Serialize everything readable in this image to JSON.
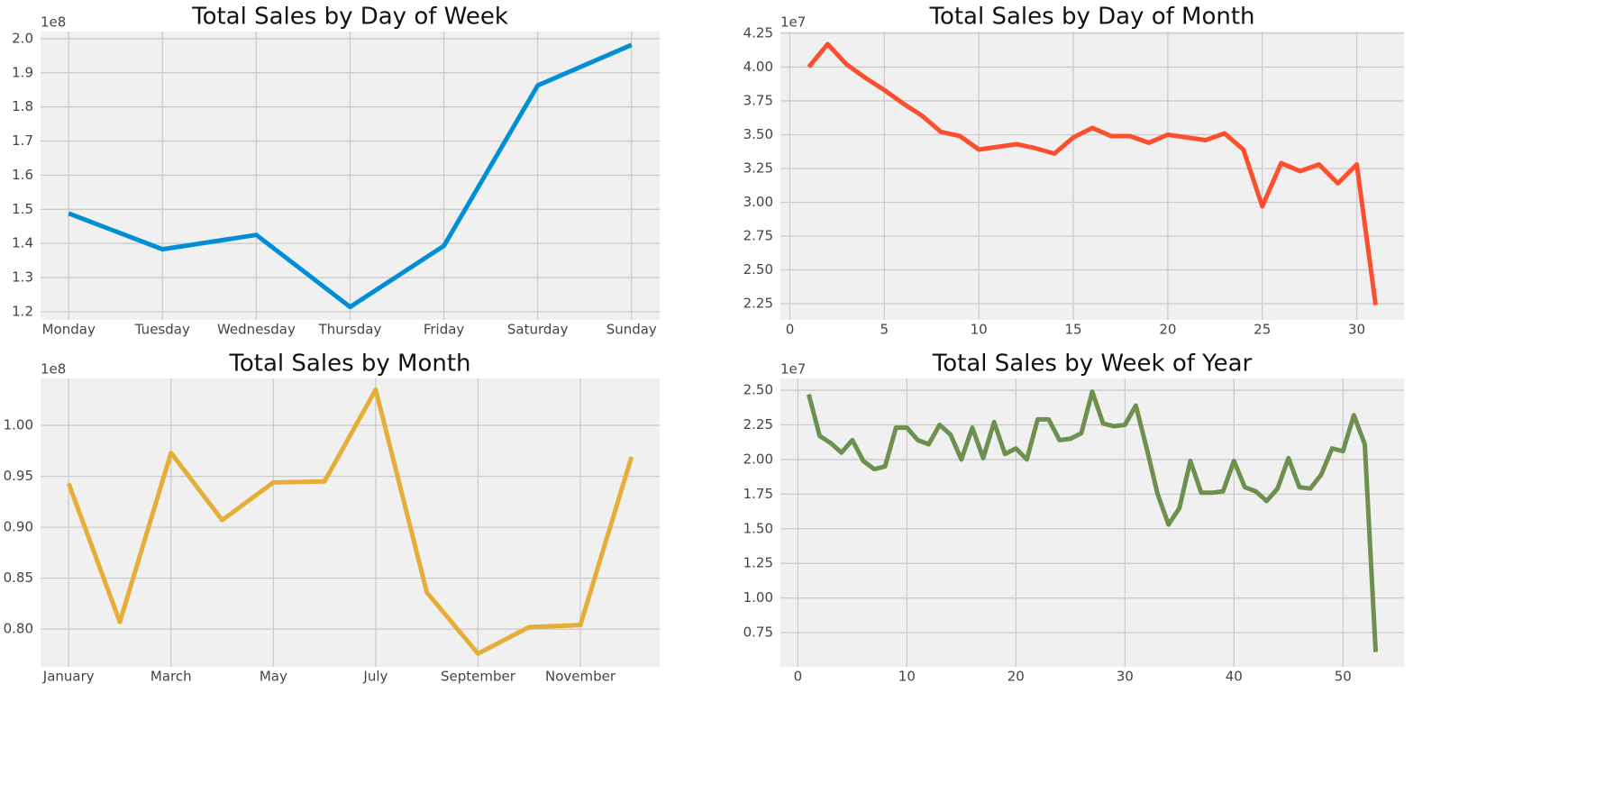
{
  "chart_data": [
    {
      "type": "line",
      "title": "Total Sales by Day of Week",
      "offset_label": "1e8",
      "categories": [
        "Monday",
        "Tuesday",
        "Wednesday",
        "Thursday",
        "Friday",
        "Saturday",
        "Sunday"
      ],
      "values": [
        1.488,
        1.383,
        1.425,
        1.214,
        1.393,
        1.863,
        1.982
      ],
      "color": "#008fd5",
      "ylim": [
        1.176,
        2.021
      ],
      "yticks": [
        1.2,
        1.3,
        1.4,
        1.5,
        1.6,
        1.7,
        1.8,
        1.9,
        {
          "value": 2,
          "label": "2.0"
        }
      ],
      "grid": true
    },
    {
      "type": "line",
      "title": "Total Sales by Day of Month",
      "offset_label": "1e7",
      "x": [
        1,
        2,
        3,
        4,
        5,
        6,
        7,
        8,
        9,
        10,
        11,
        12,
        13,
        14,
        15,
        16,
        17,
        18,
        19,
        20,
        21,
        22,
        23,
        24,
        25,
        26,
        27,
        28,
        29,
        30,
        31
      ],
      "values": [
        4.0,
        4.17,
        4.02,
        3.92,
        3.83,
        3.73,
        3.64,
        3.52,
        3.49,
        3.39,
        3.41,
        3.43,
        3.4,
        3.36,
        3.48,
        3.55,
        3.49,
        3.49,
        3.44,
        3.5,
        3.48,
        3.46,
        3.51,
        3.39,
        2.97,
        3.29,
        3.23,
        3.28,
        3.14,
        3.28,
        2.24
      ],
      "color": "#fc4f30",
      "xlim": [
        -0.5,
        32.5
      ],
      "ylim": [
        2.13,
        4.263
      ],
      "xticks": [
        0,
        5,
        10,
        15,
        20,
        25,
        30
      ],
      "yticks": [
        2.25,
        {
          "value": 2.5,
          "label": "2.50"
        },
        2.75,
        {
          "value": 3,
          "label": "3.00"
        },
        3.25,
        {
          "value": 3.5,
          "label": "3.50"
        },
        3.75,
        {
          "value": 4,
          "label": "4.00"
        },
        4.25
      ],
      "grid": true
    },
    {
      "type": "line",
      "title": "Total Sales by Month",
      "offset_label": "1e8",
      "categories": [
        "January",
        null,
        "March",
        null,
        "May",
        null,
        "July",
        null,
        "September",
        null,
        "November",
        null
      ],
      "values": [
        0.943,
        0.807,
        0.973,
        0.907,
        0.944,
        0.945,
        1.035,
        0.836,
        0.776,
        0.802,
        0.804,
        0.969
      ],
      "color": "#e5ae38",
      "ylim": [
        0.763,
        1.046
      ],
      "yticks": [
        {
          "value": 0.8,
          "label": "0.80"
        },
        0.85,
        {
          "value": 0.9,
          "label": "0.90"
        },
        0.95,
        {
          "value": 1,
          "label": "1.00"
        }
      ],
      "grid": true
    },
    {
      "type": "line",
      "title": "Total Sales by Week of Year",
      "offset_label": "1e7",
      "x": [
        1,
        2,
        3,
        4,
        5,
        6,
        7,
        8,
        9,
        10,
        11,
        12,
        13,
        14,
        15,
        16,
        17,
        18,
        19,
        20,
        21,
        22,
        23,
        24,
        25,
        26,
        27,
        28,
        29,
        30,
        31,
        32,
        33,
        34,
        35,
        36,
        37,
        38,
        39,
        40,
        41,
        42,
        43,
        44,
        45,
        46,
        47,
        48,
        49,
        50,
        51,
        52,
        53
      ],
      "values": [
        2.47,
        2.17,
        2.12,
        2.05,
        2.14,
        1.99,
        1.93,
        1.95,
        2.23,
        2.23,
        2.14,
        2.11,
        2.25,
        2.18,
        2.0,
        2.23,
        2.01,
        2.27,
        2.04,
        2.08,
        2.0,
        2.29,
        2.29,
        2.14,
        2.15,
        2.19,
        2.49,
        2.26,
        2.24,
        2.25,
        2.39,
        2.08,
        1.75,
        1.53,
        1.65,
        1.99,
        1.76,
        1.76,
        1.77,
        1.99,
        1.8,
        1.77,
        1.7,
        1.79,
        2.01,
        1.8,
        1.79,
        1.89,
        2.08,
        2.06,
        2.32,
        2.11,
        0.61
      ],
      "color": "#6d904f",
      "xlim": [
        -1.6,
        55.6
      ],
      "ylim": [
        0.503,
        2.585
      ],
      "xticks": [
        0,
        10,
        20,
        30,
        40,
        50
      ],
      "yticks": [
        0.75,
        {
          "value": 1,
          "label": "1.00"
        },
        1.25,
        {
          "value": 1.5,
          "label": "1.50"
        },
        1.75,
        {
          "value": 2,
          "label": "2.00"
        },
        2.25,
        {
          "value": 2.5,
          "label": "2.50"
        }
      ],
      "grid": true
    }
  ]
}
